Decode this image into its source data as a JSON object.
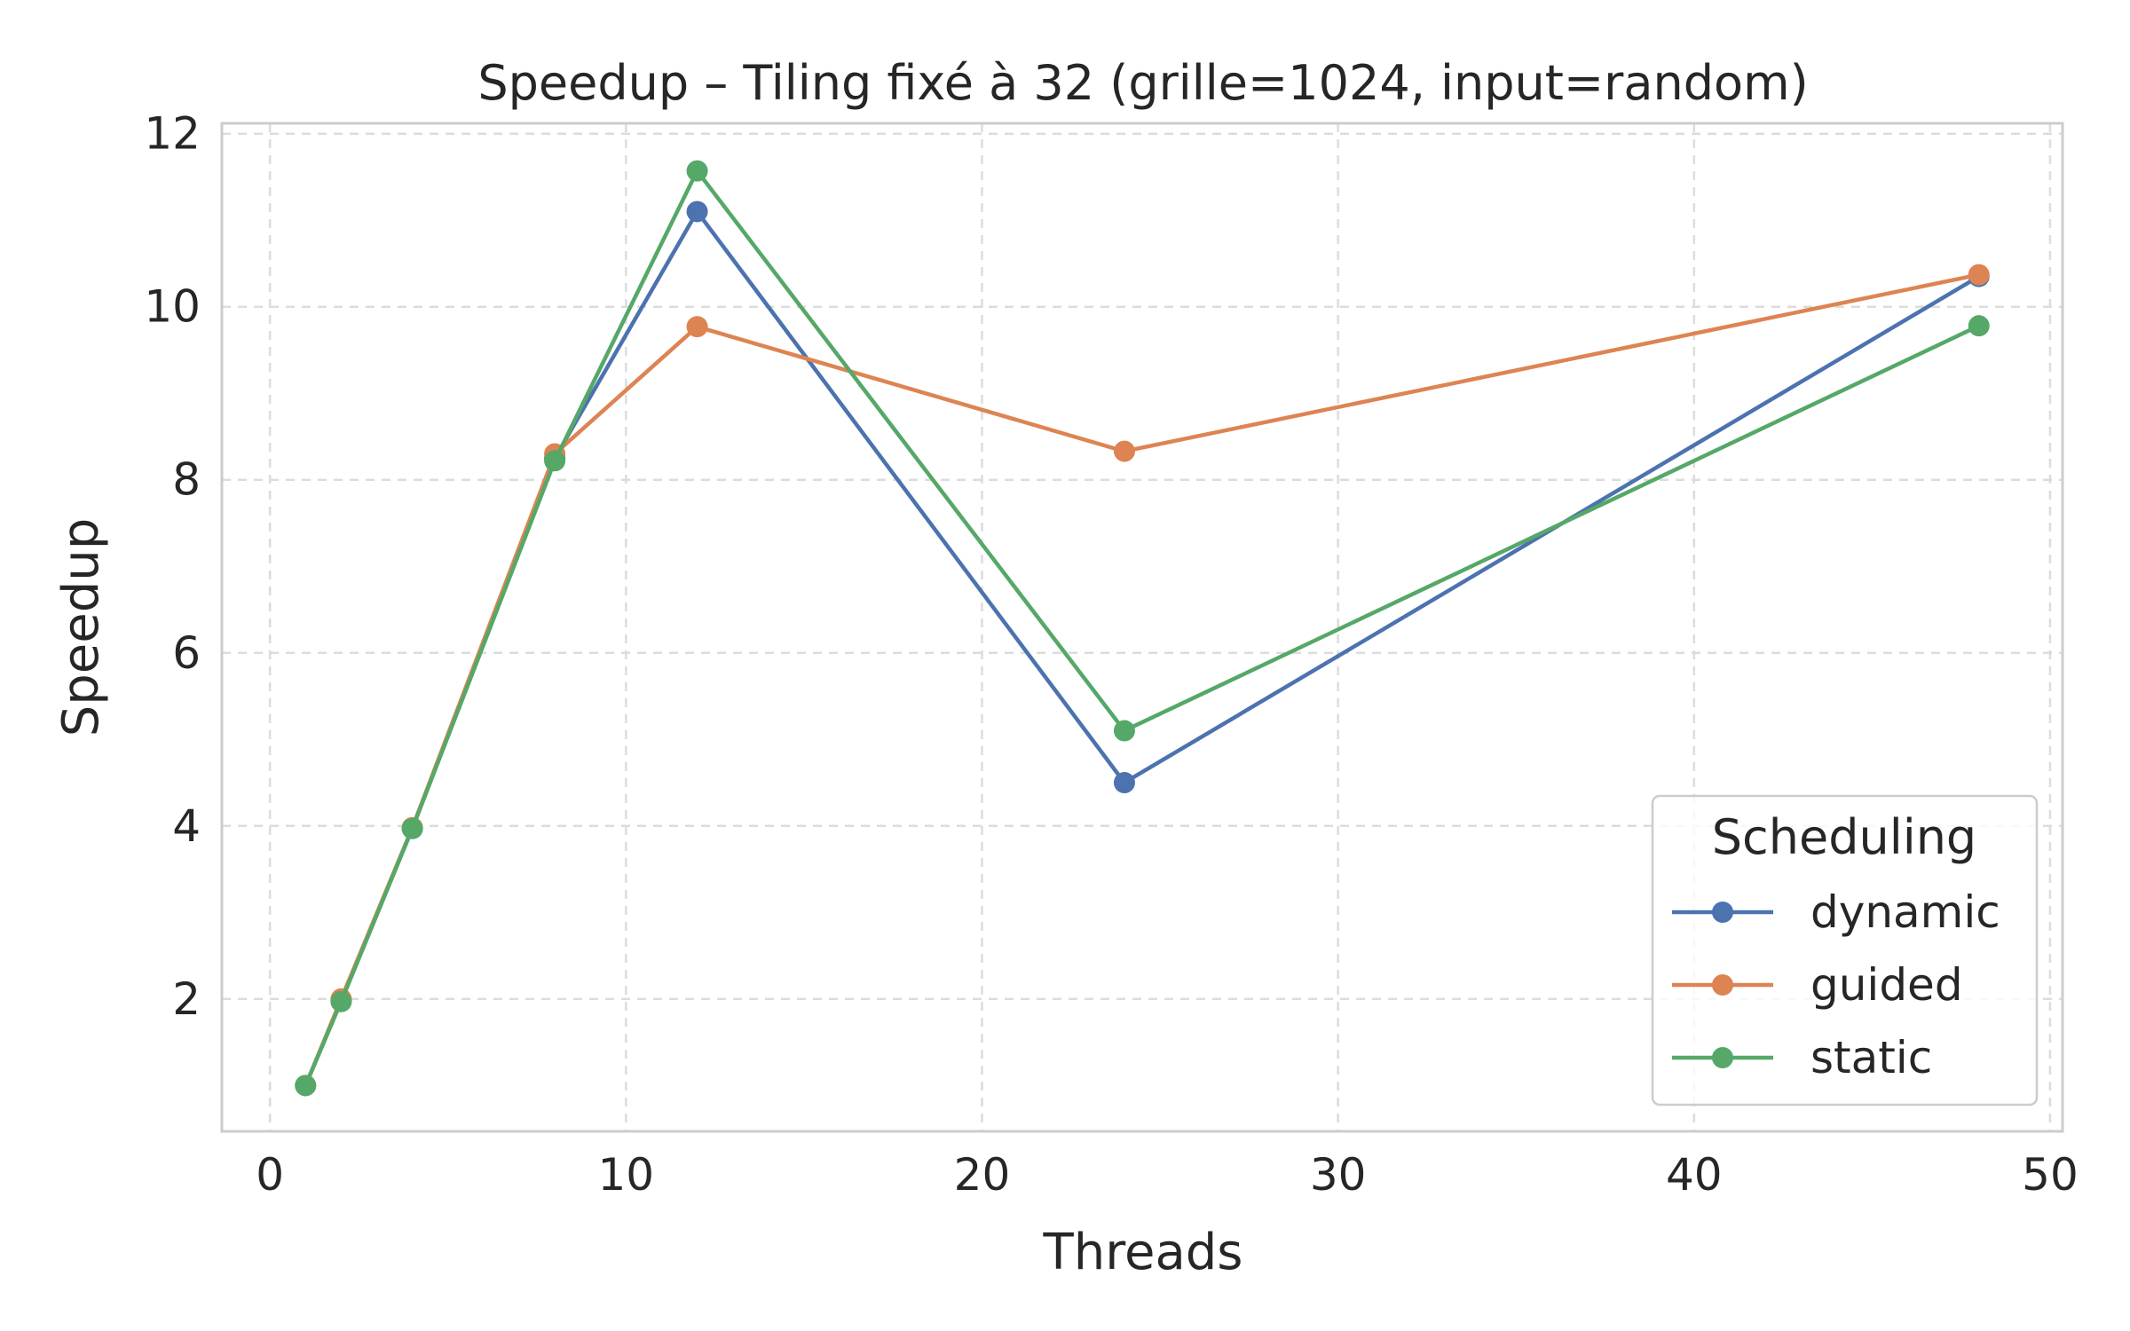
{
  "chart_data": {
    "type": "line",
    "title": "Speedup – Tiling fixé à 32 (grille=1024, input=random)",
    "xlabel": "Threads",
    "ylabel": "Speedup",
    "xlim": [
      -1.35,
      50.35
    ],
    "ylim": [
      0.47,
      12.12
    ],
    "xticks": [
      0,
      10,
      20,
      30,
      40,
      50
    ],
    "yticks": [
      2,
      4,
      6,
      8,
      10,
      12
    ],
    "grid": true,
    "legend": {
      "title": "Scheduling",
      "placement": "lower-right"
    },
    "x": [
      1,
      2,
      4,
      8,
      12,
      24,
      48
    ],
    "series": [
      {
        "name": "dynamic",
        "color": "#4c72b0",
        "values": [
          1.0,
          1.98,
          3.97,
          8.25,
          11.1,
          4.5,
          10.35
        ]
      },
      {
        "name": "guided",
        "color": "#dd8452",
        "values": [
          1.0,
          2.0,
          3.98,
          8.3,
          9.77,
          8.33,
          10.37
        ]
      },
      {
        "name": "static",
        "color": "#55a868",
        "values": [
          1.0,
          1.97,
          3.97,
          8.22,
          11.57,
          5.1,
          9.78
        ]
      }
    ]
  }
}
